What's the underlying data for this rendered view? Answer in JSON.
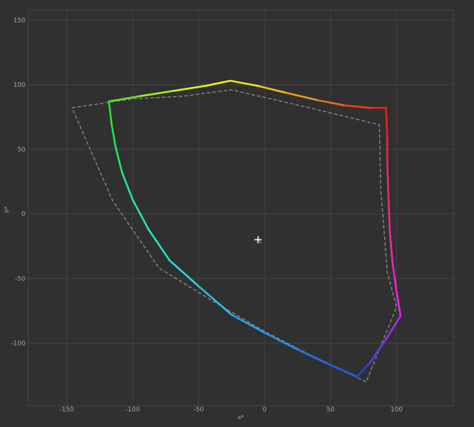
{
  "chart_data": {
    "type": "line",
    "title": "",
    "xlabel": "a*",
    "ylabel": "b*",
    "xlim": [
      -180,
      145
    ],
    "ylim": [
      -147,
      158
    ],
    "x_ticks": [
      -150,
      -100,
      -50,
      0,
      50,
      100
    ],
    "y_ticks": [
      150,
      100,
      50,
      0,
      -50,
      -100
    ],
    "x_tick_labels": [
      "-150",
      "-100",
      "-50",
      "0",
      "50",
      "100"
    ],
    "y_tick_labels": [
      "150",
      "100",
      "50",
      "0",
      "-50",
      "-100"
    ],
    "grid": true,
    "legend": "none",
    "series": [
      {
        "style": "solid-gradient",
        "points": [
          {
            "a": -26,
            "b": 103,
            "color": "#ffee22"
          },
          {
            "a": -45,
            "b": 99,
            "color": "#e0f022"
          },
          {
            "a": -70,
            "b": 95,
            "color": "#aaf022"
          },
          {
            "a": -95,
            "b": 91,
            "color": "#66e824"
          },
          {
            "a": -118,
            "b": 87,
            "color": "#22e830"
          },
          {
            "a": -116,
            "b": 70,
            "color": "#22e848"
          },
          {
            "a": -113,
            "b": 52,
            "color": "#22e868"
          },
          {
            "a": -108,
            "b": 32,
            "color": "#22e88c"
          },
          {
            "a": -100,
            "b": 11,
            "color": "#22e8b0"
          },
          {
            "a": -88,
            "b": -12,
            "color": "#22e8d0"
          },
          {
            "a": -72,
            "b": -36,
            "color": "#22e0ee"
          },
          {
            "a": -50,
            "b": -56,
            "color": "#22c4f2"
          },
          {
            "a": -25,
            "b": -78,
            "color": "#22a8f4"
          },
          {
            "a": 0,
            "b": -92,
            "color": "#2290f4"
          },
          {
            "a": 25,
            "b": -105,
            "color": "#2276f0"
          },
          {
            "a": 48,
            "b": -116,
            "color": "#225ef0"
          },
          {
            "a": 70,
            "b": -126,
            "color": "#2644ee"
          },
          {
            "a": 80,
            "b": -115,
            "color": "#6a34ee"
          },
          {
            "a": 92,
            "b": -97,
            "color": "#aa2aee"
          },
          {
            "a": 103,
            "b": -79,
            "color": "#ee22ee"
          },
          {
            "a": 100,
            "b": -60,
            "color": "#f022cc"
          },
          {
            "a": 97,
            "b": -38,
            "color": "#f02aa8"
          },
          {
            "a": 95,
            "b": -15,
            "color": "#f02a86"
          },
          {
            "a": 94,
            "b": 10,
            "color": "#f02a66"
          },
          {
            "a": 93,
            "b": 40,
            "color": "#f0283e"
          },
          {
            "a": 93,
            "b": 60,
            "color": "#f0221e"
          },
          {
            "a": 92,
            "b": 82,
            "color": "#f0221e"
          },
          {
            "a": 80,
            "b": 82,
            "color": "#f0401e"
          },
          {
            "a": 60,
            "b": 84,
            "color": "#f06a1e"
          },
          {
            "a": 40,
            "b": 88,
            "color": "#f09a1e"
          },
          {
            "a": 15,
            "b": 94,
            "color": "#f0c41e"
          },
          {
            "a": -5,
            "b": 99,
            "color": "#f8de20"
          },
          {
            "a": -26,
            "b": 103,
            "color": "#ffee22"
          }
        ]
      },
      {
        "style": "dashed",
        "color": "#8a8a8a",
        "points": [
          {
            "a": -146,
            "b": 82
          },
          {
            "a": -100,
            "b": 89
          },
          {
            "a": -62,
            "b": 91
          },
          {
            "a": -25,
            "b": 96
          },
          {
            "a": 30,
            "b": 83
          },
          {
            "a": 87,
            "b": 69
          },
          {
            "a": 88,
            "b": 20
          },
          {
            "a": 93,
            "b": -45
          },
          {
            "a": 100,
            "b": -72
          },
          {
            "a": 77,
            "b": -130
          },
          {
            "a": 40,
            "b": -112
          },
          {
            "a": 0,
            "b": -91
          },
          {
            "a": -40,
            "b": -67
          },
          {
            "a": -80,
            "b": -42
          },
          {
            "a": -115,
            "b": 10
          },
          {
            "a": -146,
            "b": 82
          }
        ]
      }
    ],
    "annotations": [
      {
        "type": "white-point-marker",
        "a": -5,
        "b": -20
      }
    ]
  }
}
